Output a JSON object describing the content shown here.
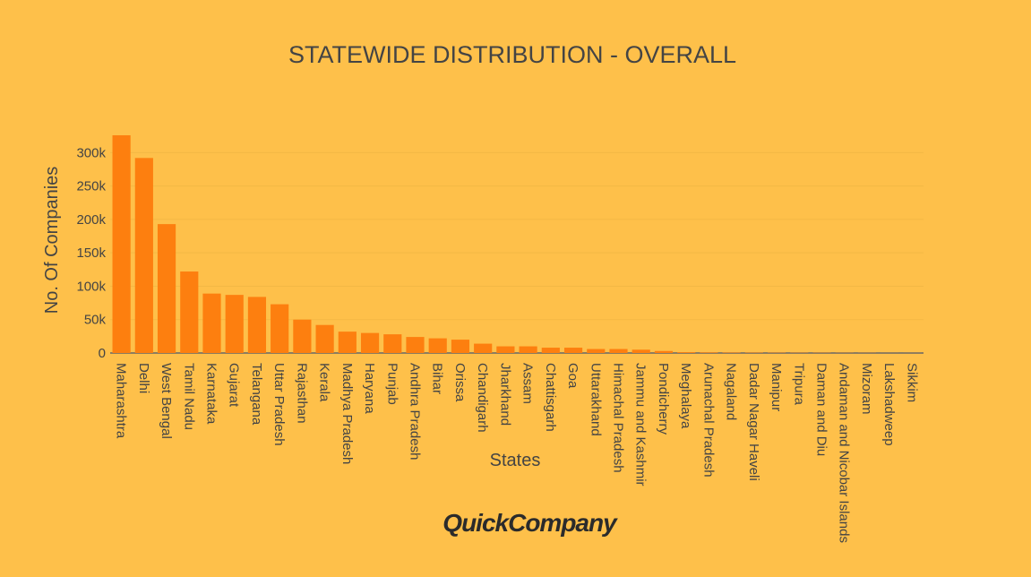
{
  "brand": {
    "logo_text": "QuickCompany"
  },
  "colors": {
    "background": "#fec04a",
    "bar": "#fd7f0f",
    "text": "#444444"
  },
  "chart_data": {
    "type": "bar",
    "title": "STATEWIDE DISTRIBUTION - OVERALL",
    "xlabel": "States",
    "ylabel": "No. Of Companies",
    "ylim": [
      0,
      330000
    ],
    "yticks": [
      0,
      50000,
      100000,
      150000,
      200000,
      250000,
      300000
    ],
    "ytick_labels": [
      "0",
      "50k",
      "100k",
      "150k",
      "200k",
      "250k",
      "300k"
    ],
    "grid": true,
    "legend": "none",
    "categories": [
      "Maharashtra",
      "Delhi",
      "West Bengal",
      "Tamil Nadu",
      "Karnataka",
      "Gujarat",
      "Telangana",
      "Uttar Pradesh",
      "Rajasthan",
      "Kerala",
      "Madhya Pradesh",
      "Haryana",
      "Punjab",
      "Andhra Pradesh",
      "Bihar",
      "Orissa",
      "Chandigarh",
      "Jharkhand",
      "Assam",
      "Chattisgarh",
      "Goa",
      "Uttarakhand",
      "Himachal Pradesh",
      "Jammu and Kashmir",
      "Pondicherry",
      "Meghalaya",
      "Arunachal Pradesh",
      "Nagaland",
      "Dadar Nagar Haveli",
      "Manipur",
      "Tripura",
      "Daman and Diu",
      "Andaman and Nicobar Islands",
      "Mizoram",
      "Lakshadweep",
      "Sikkim"
    ],
    "values": [
      326000,
      292000,
      193000,
      122000,
      89000,
      87000,
      84000,
      73000,
      50000,
      42000,
      32000,
      30000,
      28000,
      24000,
      22000,
      20000,
      14000,
      10000,
      10000,
      8000,
      8000,
      6000,
      6000,
      5000,
      3000,
      1200,
      900,
      700,
      600,
      500,
      450,
      400,
      300,
      250,
      100,
      80
    ]
  }
}
